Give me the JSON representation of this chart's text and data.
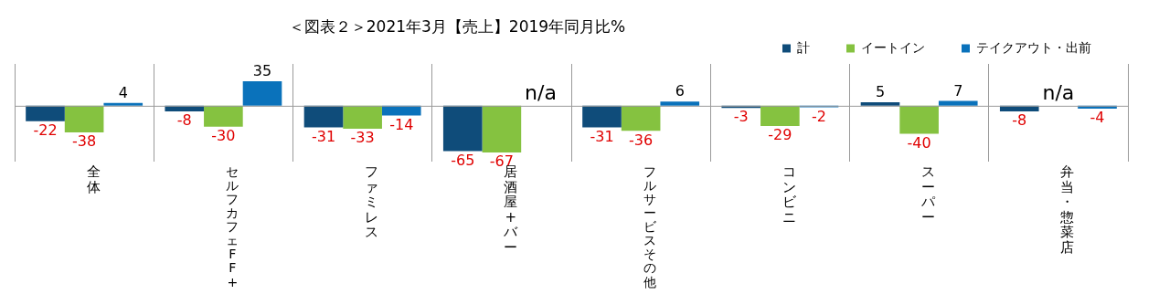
{
  "chart_data": {
    "type": "bar",
    "title": "＜図表２＞2021年3月【売上】2019年同月比%",
    "categories": [
      "全体",
      "セルフカフェFF+",
      "ファミレス",
      "居酒屋+バー",
      "フルサービスその他",
      "コンビニ",
      "スーパー",
      "弁当・惣菜店"
    ],
    "series": [
      {
        "name": "計",
        "color": "#0f4c7a",
        "values": [
          -22,
          -8,
          -31,
          -65,
          -31,
          -3,
          5,
          -8
        ],
        "value_labels": [
          "-22",
          "-8",
          "-31",
          "-65",
          "-31",
          "-3",
          "5",
          "-8"
        ]
      },
      {
        "name": "イートイン",
        "color": "#85c240",
        "values": [
          -38,
          -30,
          -33,
          -67,
          -36,
          -29,
          -40,
          null
        ],
        "value_labels": [
          "-38",
          "-30",
          "-33",
          "-67",
          "-36",
          "-29",
          "-40",
          "n/a"
        ]
      },
      {
        "name": "テイクアウト・出前",
        "color": "#0a72bb",
        "values": [
          4,
          35,
          -14,
          null,
          6,
          -2,
          7,
          -4
        ],
        "value_labels": [
          "4",
          "35",
          "-14",
          "n/a",
          "6",
          "-2",
          "7",
          "-4"
        ]
      }
    ],
    "relative": false,
    "grid": "x",
    "legend": "top right"
  }
}
